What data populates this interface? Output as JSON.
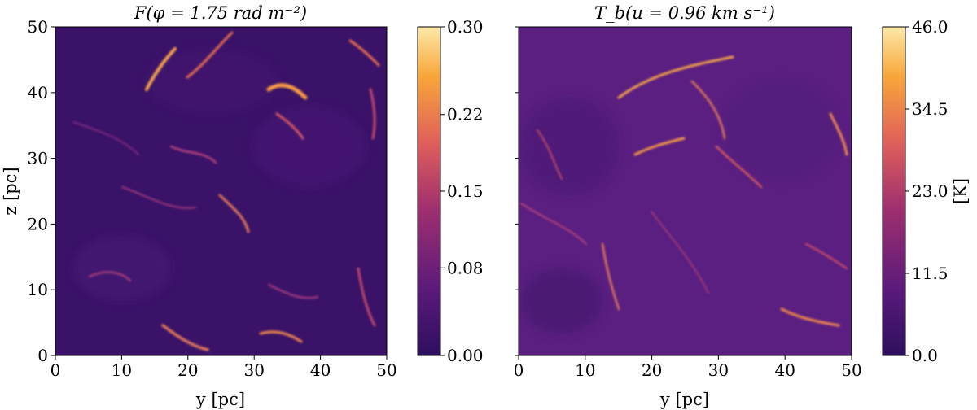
{
  "chart_data": [
    {
      "type": "heatmap",
      "title": "F(φ = 1.75 rad m⁻²)",
      "xlabel": "y [pc]",
      "ylabel": "z [pc]",
      "xlim": [
        0,
        50
      ],
      "ylim": [
        0,
        50
      ],
      "x_ticks": [
        "0",
        "10",
        "20",
        "30",
        "40",
        "50"
      ],
      "y_ticks": [
        "0",
        "10",
        "20",
        "30",
        "40",
        "50"
      ],
      "colormap": "plasma-like (deep purple → orange → pale yellow)",
      "colorbar": {
        "range": [
          0.0,
          0.3
        ],
        "ticks": [
          "0.00",
          "0.08",
          "0.15",
          "0.22",
          "0.30"
        ],
        "label": ""
      },
      "features": [
        {
          "y": 17,
          "z": 40,
          "intensity": 0.9
        },
        {
          "y": 36,
          "z": 40,
          "intensity": 0.8
        },
        {
          "y": 26,
          "z": 44,
          "intensity": 0.6
        },
        {
          "y": 48,
          "z": 40,
          "intensity": 0.5
        },
        {
          "y": 28,
          "z": 22,
          "intensity": 0.55
        },
        {
          "y": 20,
          "z": 31,
          "intensity": 0.5
        },
        {
          "y": 22,
          "z": 3,
          "intensity": 0.6
        },
        {
          "y": 33,
          "z": 3,
          "intensity": 0.5
        },
        {
          "y": 8,
          "z": 13,
          "intensity": 0.35
        },
        {
          "y": 45,
          "z": 13,
          "intensity": 0.45
        }
      ]
    },
    {
      "type": "heatmap",
      "title": "T_b(u = 0.96 km s⁻¹)",
      "xlabel": "y [pc]",
      "ylabel": "",
      "xlim": [
        0,
        50
      ],
      "ylim": [
        0,
        50
      ],
      "x_ticks": [
        "0",
        "10",
        "20",
        "30",
        "40",
        "50"
      ],
      "y_ticks": [],
      "colormap": "plasma-like (deep purple → orange → pale yellow)",
      "colorbar": {
        "range": [
          0.0,
          46.0
        ],
        "ticks": [
          "0.0",
          "11.5",
          "23.0",
          "34.5",
          "46.0"
        ],
        "label": "[K]"
      },
      "features": [
        {
          "y": 30,
          "z": 42,
          "intensity": 0.9
        },
        {
          "y": 20,
          "z": 33,
          "intensity": 0.75
        },
        {
          "y": 27,
          "z": 32,
          "intensity": 0.7
        },
        {
          "y": 37,
          "z": 28,
          "intensity": 0.6
        },
        {
          "y": 47,
          "z": 32,
          "intensity": 0.55
        },
        {
          "y": 14,
          "z": 15,
          "intensity": 0.5
        },
        {
          "y": 45,
          "z": 6,
          "intensity": 0.55
        },
        {
          "y": 3,
          "z": 24,
          "intensity": 0.4
        }
      ]
    }
  ]
}
